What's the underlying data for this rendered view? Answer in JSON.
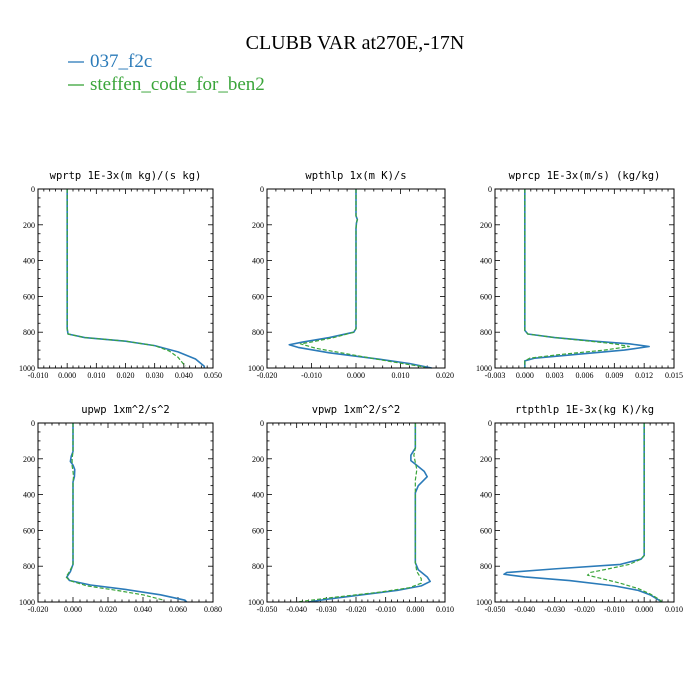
{
  "figure": {
    "title": "CLUBB VAR at270E,-17N",
    "legend": [
      {
        "label": "037_f2c",
        "color": "#2b7bb9",
        "dash": ""
      },
      {
        "label": "steffen_code_for_ben2",
        "color": "#3aa53a",
        "dash": "4,2"
      }
    ]
  },
  "chart_data": [
    {
      "type": "line",
      "title": "wprtp  1E-3x(m kg)/(s kg)",
      "xlim": [
        -0.01,
        0.05
      ],
      "xticks": [
        -0.01,
        0.0,
        0.01,
        0.02,
        0.03,
        0.04,
        0.05
      ],
      "xtick_labels": [
        "-0.010",
        "0.000",
        "0.010",
        "0.020",
        "0.030",
        "0.040",
        "0.050"
      ],
      "ylim": [
        0,
        1000
      ],
      "yticks": [
        0,
        200,
        400,
        600,
        800,
        1000
      ],
      "y_inverted": true,
      "series": [
        {
          "name": "037_f2c",
          "color": "#2b7bb9",
          "points": [
            [
              0,
              0
            ],
            [
              0,
              300
            ],
            [
              0,
              600
            ],
            [
              0,
              780
            ],
            [
              0.0003,
              810
            ],
            [
              0.006,
              830
            ],
            [
              0.02,
              850
            ],
            [
              0.03,
              875
            ],
            [
              0.038,
              910
            ],
            [
              0.044,
              950
            ],
            [
              0.047,
              990
            ],
            [
              0.047,
              1000
            ]
          ]
        },
        {
          "name": "steffen_code_for_ben2",
          "color": "#3aa53a",
          "points": [
            [
              0,
              0
            ],
            [
              0,
              300
            ],
            [
              0,
              600
            ],
            [
              0,
              780
            ],
            [
              0.0003,
              810
            ],
            [
              0.006,
              830
            ],
            [
              0.02,
              850
            ],
            [
              0.03,
              875
            ],
            [
              0.035,
              905
            ],
            [
              0.038,
              940
            ],
            [
              0.0405,
              990
            ]
          ]
        }
      ]
    },
    {
      "type": "line",
      "title": "wpthlp  1x(m K)/s",
      "xlim": [
        -0.02,
        0.02
      ],
      "xticks": [
        -0.02,
        -0.01,
        0.0,
        0.01,
        0.02
      ],
      "xtick_labels": [
        "-0.020",
        "-0.010",
        "0.000",
        "0.010",
        "0.020"
      ],
      "ylim": [
        0,
        1000
      ],
      "yticks": [
        0,
        200,
        400,
        600,
        800,
        1000
      ],
      "y_inverted": true,
      "series": [
        {
          "name": "037_f2c",
          "color": "#2b7bb9",
          "points": [
            [
              0,
              0
            ],
            [
              0,
              150
            ],
            [
              0.0003,
              170
            ],
            [
              0.0001,
              190
            ],
            [
              0,
              220
            ],
            [
              0,
              600
            ],
            [
              0,
              780
            ],
            [
              -0.0005,
              800
            ],
            [
              -0.006,
              830
            ],
            [
              -0.012,
              855
            ],
            [
              -0.015,
              870
            ],
            [
              -0.013,
              885
            ],
            [
              -0.006,
              915
            ],
            [
              0.005,
              950
            ],
            [
              0.012,
              975
            ],
            [
              0.017,
              1000
            ]
          ]
        },
        {
          "name": "steffen_code_for_ben2",
          "color": "#3aa53a",
          "points": [
            [
              0,
              0
            ],
            [
              0,
              150
            ],
            [
              0.0003,
              170
            ],
            [
              0.0001,
              190
            ],
            [
              0,
              220
            ],
            [
              0,
              600
            ],
            [
              0,
              780
            ],
            [
              -0.0005,
              800
            ],
            [
              -0.005,
              830
            ],
            [
              -0.01,
              855
            ],
            [
              -0.0125,
              865
            ],
            [
              -0.009,
              890
            ],
            [
              0.0,
              930
            ],
            [
              0.008,
              965
            ],
            [
              0.0155,
              995
            ]
          ]
        }
      ]
    },
    {
      "type": "line",
      "title": "wprcp  1E-3x(m/s) (kg/kg)",
      "xlim": [
        -0.003,
        0.015
      ],
      "xticks": [
        -0.003,
        0.0,
        0.003,
        0.006,
        0.009,
        0.012,
        0.015
      ],
      "xtick_labels": [
        "-0.003",
        "0.000",
        "0.003",
        "0.006",
        "0.009",
        "0.012",
        "0.015"
      ],
      "ylim": [
        0,
        1000
      ],
      "yticks": [
        0,
        200,
        400,
        600,
        800,
        1000
      ],
      "y_inverted": true,
      "series": [
        {
          "name": "037_f2c",
          "color": "#2b7bb9",
          "points": [
            [
              0,
              0
            ],
            [
              0,
              600
            ],
            [
              0,
              790
            ],
            [
              0.0003,
              810
            ],
            [
              0.003,
              830
            ],
            [
              0.007,
              850
            ],
            [
              0.0105,
              865
            ],
            [
              0.0125,
              880
            ],
            [
              0.01,
              900
            ],
            [
              0.005,
              925
            ],
            [
              0.001,
              945
            ],
            [
              0,
              960
            ],
            [
              0,
              1000
            ]
          ]
        },
        {
          "name": "steffen_code_for_ben2",
          "color": "#3aa53a",
          "points": [
            [
              0,
              0
            ],
            [
              0,
              600
            ],
            [
              0,
              790
            ],
            [
              0.0003,
              810
            ],
            [
              0.003,
              830
            ],
            [
              0.0065,
              850
            ],
            [
              0.009,
              865
            ],
            [
              0.0105,
              880
            ],
            [
              0.008,
              900
            ],
            [
              0.0035,
              925
            ],
            [
              0.0005,
              945
            ],
            [
              0,
              960
            ],
            [
              0,
              1000
            ]
          ]
        }
      ]
    },
    {
      "type": "line",
      "title": "upwp  1xm^2/s^2",
      "xlim": [
        -0.02,
        0.08
      ],
      "xticks": [
        -0.02,
        0.0,
        0.02,
        0.04,
        0.06,
        0.08
      ],
      "xtick_labels": [
        "-0.020",
        "0.000",
        "0.020",
        "0.040",
        "0.060",
        "0.080"
      ],
      "ylim": [
        0,
        1000
      ],
      "yticks": [
        0,
        200,
        400,
        600,
        800,
        1000
      ],
      "y_inverted": true,
      "series": [
        {
          "name": "037_f2c",
          "color": "#2b7bb9",
          "points": [
            [
              0,
              0
            ],
            [
              0,
              160
            ],
            [
              -0.001,
              185
            ],
            [
              -0.0015,
              215
            ],
            [
              0,
              235
            ],
            [
              0.001,
              260
            ],
            [
              0.0008,
              300
            ],
            [
              0,
              330
            ],
            [
              0,
              600
            ],
            [
              0,
              790
            ],
            [
              -0.0015,
              830
            ],
            [
              -0.0035,
              860
            ],
            [
              -0.002,
              880
            ],
            [
              0.01,
              905
            ],
            [
              0.03,
              930
            ],
            [
              0.05,
              960
            ],
            [
              0.064,
              990
            ],
            [
              0.065,
              1000
            ]
          ]
        },
        {
          "name": "steffen_code_for_ben2",
          "color": "#3aa53a",
          "points": [
            [
              0,
              0
            ],
            [
              0,
              160
            ],
            [
              -0.0005,
              200
            ],
            [
              -0.0005,
              240
            ],
            [
              0,
              270
            ],
            [
              0.0003,
              300
            ],
            [
              0,
              330
            ],
            [
              0,
              600
            ],
            [
              0,
              790
            ],
            [
              -0.002,
              830
            ],
            [
              -0.004,
              860
            ],
            [
              -0.002,
              880
            ],
            [
              0.008,
              910
            ],
            [
              0.025,
              935
            ],
            [
              0.04,
              960
            ],
            [
              0.052,
              990
            ]
          ]
        }
      ]
    },
    {
      "type": "line",
      "title": "vpwp  1xm^2/s^2",
      "xlim": [
        -0.05,
        0.01
      ],
      "xticks": [
        -0.05,
        -0.04,
        -0.03,
        -0.02,
        -0.01,
        0.0,
        0.01
      ],
      "xtick_labels": [
        "-0.050",
        "-0.040",
        "-0.030",
        "-0.020",
        "-0.010",
        "0.000",
        "0.010"
      ],
      "ylim": [
        0,
        1000
      ],
      "yticks": [
        0,
        200,
        400,
        600,
        800,
        1000
      ],
      "y_inverted": true,
      "series": [
        {
          "name": "037_f2c",
          "color": "#2b7bb9",
          "points": [
            [
              0,
              0
            ],
            [
              0,
              140
            ],
            [
              -0.0015,
              180
            ],
            [
              -0.0015,
              210
            ],
            [
              0,
              230
            ],
            [
              0.003,
              270
            ],
            [
              0.004,
              300
            ],
            [
              0.001,
              350
            ],
            [
              0,
              390
            ],
            [
              0,
              600
            ],
            [
              0,
              780
            ],
            [
              0.001,
              820
            ],
            [
              0.004,
              860
            ],
            [
              0.005,
              885
            ],
            [
              0.002,
              910
            ],
            [
              -0.006,
              935
            ],
            [
              -0.018,
              960
            ],
            [
              -0.03,
              985
            ],
            [
              -0.036,
              1000
            ]
          ]
        },
        {
          "name": "steffen_code_for_ben2",
          "color": "#3aa53a",
          "points": [
            [
              0,
              0
            ],
            [
              0,
              140
            ],
            [
              -0.0005,
              180
            ],
            [
              0,
              220
            ],
            [
              0.0005,
              260
            ],
            [
              0,
              320
            ],
            [
              0,
              600
            ],
            [
              0,
              780
            ],
            [
              0.0005,
              830
            ],
            [
              0.002,
              870
            ],
            [
              0.002,
              895
            ],
            [
              -0.002,
              920
            ],
            [
              -0.012,
              945
            ],
            [
              -0.028,
              975
            ],
            [
              -0.04,
              1000
            ]
          ]
        }
      ]
    },
    {
      "type": "line",
      "title": "rtpthlp  1E-3x(kg K)/kg",
      "xlim": [
        -0.05,
        0.01
      ],
      "xticks": [
        -0.05,
        -0.04,
        -0.03,
        -0.02,
        -0.01,
        0.0,
        0.01
      ],
      "xtick_labels": [
        "-0.050",
        "-0.040",
        "-0.030",
        "-0.020",
        "-0.010",
        "0.000",
        "0.010"
      ],
      "ylim": [
        0,
        1000
      ],
      "yticks": [
        0,
        200,
        400,
        600,
        800,
        1000
      ],
      "y_inverted": true,
      "series": [
        {
          "name": "037_f2c",
          "color": "#2b7bb9",
          "points": [
            [
              0,
              0
            ],
            [
              0,
              600
            ],
            [
              0,
              740
            ],
            [
              -0.001,
              760
            ],
            [
              -0.008,
              790
            ],
            [
              -0.03,
              815
            ],
            [
              -0.046,
              835
            ],
            [
              -0.047,
              845
            ],
            [
              -0.04,
              860
            ],
            [
              -0.025,
              880
            ],
            [
              -0.01,
              910
            ],
            [
              -0.002,
              935
            ],
            [
              0.002,
              960
            ],
            [
              0.005,
              990
            ],
            [
              0.006,
              1000
            ]
          ]
        },
        {
          "name": "steffen_code_for_ben2",
          "color": "#3aa53a",
          "points": [
            [
              0,
              0
            ],
            [
              0,
              600
            ],
            [
              0,
              740
            ],
            [
              -0.001,
              760
            ],
            [
              -0.005,
              790
            ],
            [
              -0.012,
              815
            ],
            [
              -0.018,
              835
            ],
            [
              -0.019,
              850
            ],
            [
              -0.014,
              870
            ],
            [
              -0.008,
              895
            ],
            [
              -0.002,
              925
            ],
            [
              0.002,
              955
            ],
            [
              0.005,
              985
            ],
            [
              0.006,
              1000
            ]
          ]
        }
      ]
    }
  ]
}
